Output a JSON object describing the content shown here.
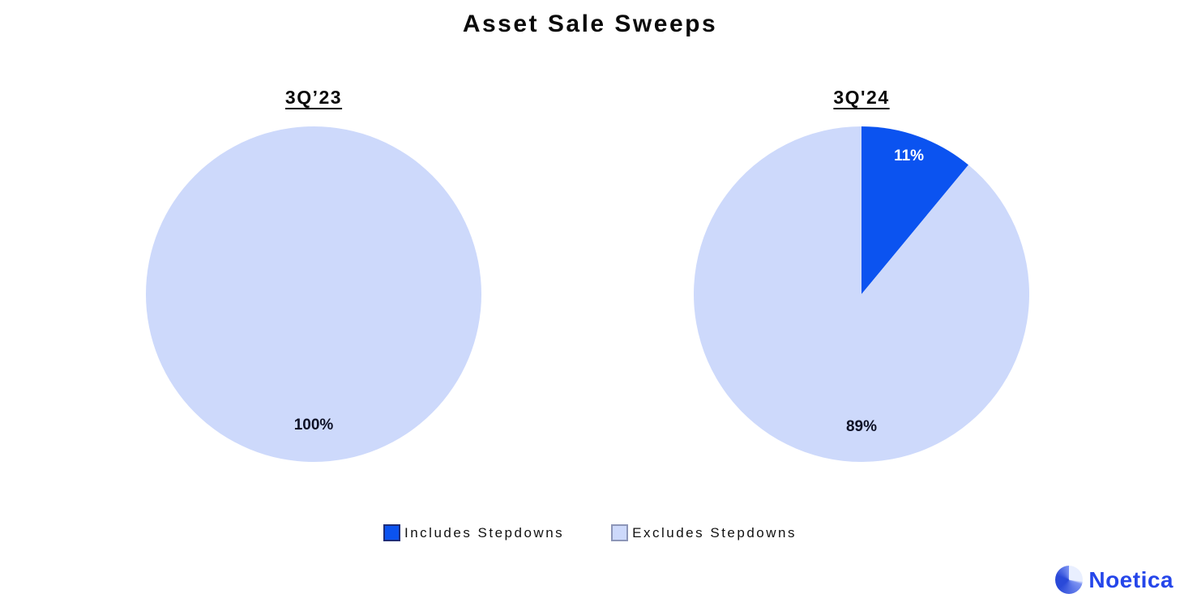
{
  "header": {
    "title": "Asset Sale Sweeps"
  },
  "chart_data": [
    {
      "type": "pie",
      "title": "3Q’23",
      "categories": [
        "Excludes Stepdowns"
      ],
      "values": [
        100
      ],
      "start_angle": "top",
      "direction": "clockwise",
      "slices": [
        {
          "label": "Excludes Stepdowns",
          "value": 100,
          "pct_text": "100%",
          "color": "#cdd9fb",
          "text_color": "#0e1126",
          "label_angle_deg": 180,
          "label_radius_frac": 0.78
        }
      ]
    },
    {
      "type": "pie",
      "title": "3Q'24",
      "categories": [
        "Includes Stepdowns",
        "Excludes Stepdowns"
      ],
      "values": [
        11,
        89
      ],
      "start_angle": "top",
      "direction": "clockwise",
      "slices": [
        {
          "label": "Includes Stepdowns",
          "value": 11,
          "pct_text": "11%",
          "color": "#0b53f0",
          "text_color": "#ffffff",
          "label_angle_deg": 19,
          "label_radius_frac": 0.87
        },
        {
          "label": "Excludes Stepdowns",
          "value": 89,
          "pct_text": "89%",
          "color": "#cdd9fb",
          "text_color": "#0e1126",
          "label_angle_deg": 180,
          "label_radius_frac": 0.79
        }
      ]
    }
  ],
  "legend": {
    "items": [
      {
        "label": "Includes Stepdowns",
        "color": "#0b53f0",
        "border_color": "#1e2d78"
      },
      {
        "label": "Excludes Stepdowns",
        "color": "#cdd9fb",
        "border_color": "#8d96b8"
      }
    ]
  },
  "branding": {
    "name": "Noetica",
    "text_color": "#2546ea",
    "icon_colors": {
      "light": "#e9efff",
      "mid": "#7b92f2",
      "dark": "#2a49d8"
    }
  },
  "colors": {
    "background": "#ffffff",
    "title_text": "#0a0a0a"
  }
}
